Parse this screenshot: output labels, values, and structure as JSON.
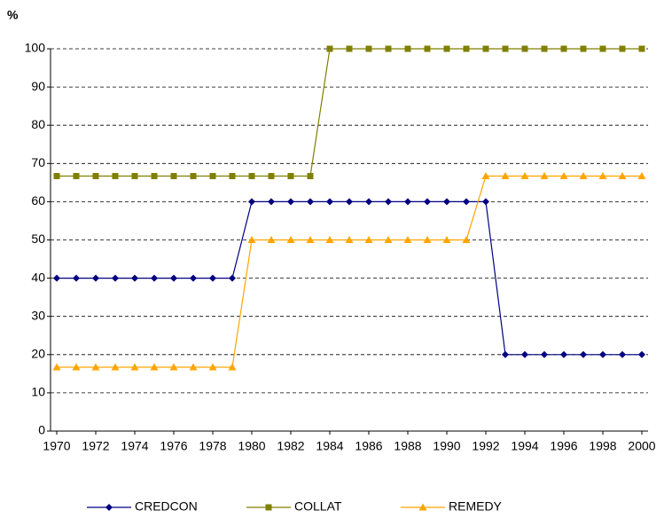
{
  "chart_data": {
    "type": "line",
    "ylabel": "%",
    "x": [
      1970,
      1971,
      1972,
      1973,
      1974,
      1975,
      1976,
      1977,
      1978,
      1979,
      1980,
      1981,
      1982,
      1983,
      1984,
      1985,
      1986,
      1987,
      1988,
      1989,
      1990,
      1991,
      1992,
      1993,
      1994,
      1995,
      1996,
      1997,
      1998,
      1999,
      2000
    ],
    "xlim": [
      1970,
      2000
    ],
    "xticks": [
      1970,
      1972,
      1974,
      1976,
      1978,
      1980,
      1982,
      1984,
      1986,
      1988,
      1990,
      1992,
      1994,
      1996,
      1998,
      2000
    ],
    "ylim": [
      0,
      100
    ],
    "yticks": [
      0,
      10,
      20,
      30,
      40,
      50,
      60,
      70,
      80,
      90,
      100
    ],
    "grid": true,
    "legend": "bottom",
    "series": [
      {
        "name": "CREDCON",
        "color": "#000080",
        "marker": "diamond",
        "values": [
          40,
          40,
          40,
          40,
          40,
          40,
          40,
          40,
          40,
          40,
          60,
          60,
          60,
          60,
          60,
          60,
          60,
          60,
          60,
          60,
          60,
          60,
          60,
          20,
          20,
          20,
          20,
          20,
          20,
          20,
          20
        ]
      },
      {
        "name": "COLLAT",
        "color": "#808000",
        "marker": "square",
        "values": [
          66.7,
          66.7,
          66.7,
          66.7,
          66.7,
          66.7,
          66.7,
          66.7,
          66.7,
          66.7,
          66.7,
          66.7,
          66.7,
          66.7,
          100,
          100,
          100,
          100,
          100,
          100,
          100,
          100,
          100,
          100,
          100,
          100,
          100,
          100,
          100,
          100,
          100
        ]
      },
      {
        "name": "REMEDY",
        "color": "#FFA500",
        "marker": "triangle",
        "values": [
          16.7,
          16.7,
          16.7,
          16.7,
          16.7,
          16.7,
          16.7,
          16.7,
          16.7,
          16.7,
          50,
          50,
          50,
          50,
          50,
          50,
          50,
          50,
          50,
          50,
          50,
          50,
          66.7,
          66.7,
          66.7,
          66.7,
          66.7,
          66.7,
          66.7,
          66.7,
          66.7
        ]
      }
    ]
  }
}
